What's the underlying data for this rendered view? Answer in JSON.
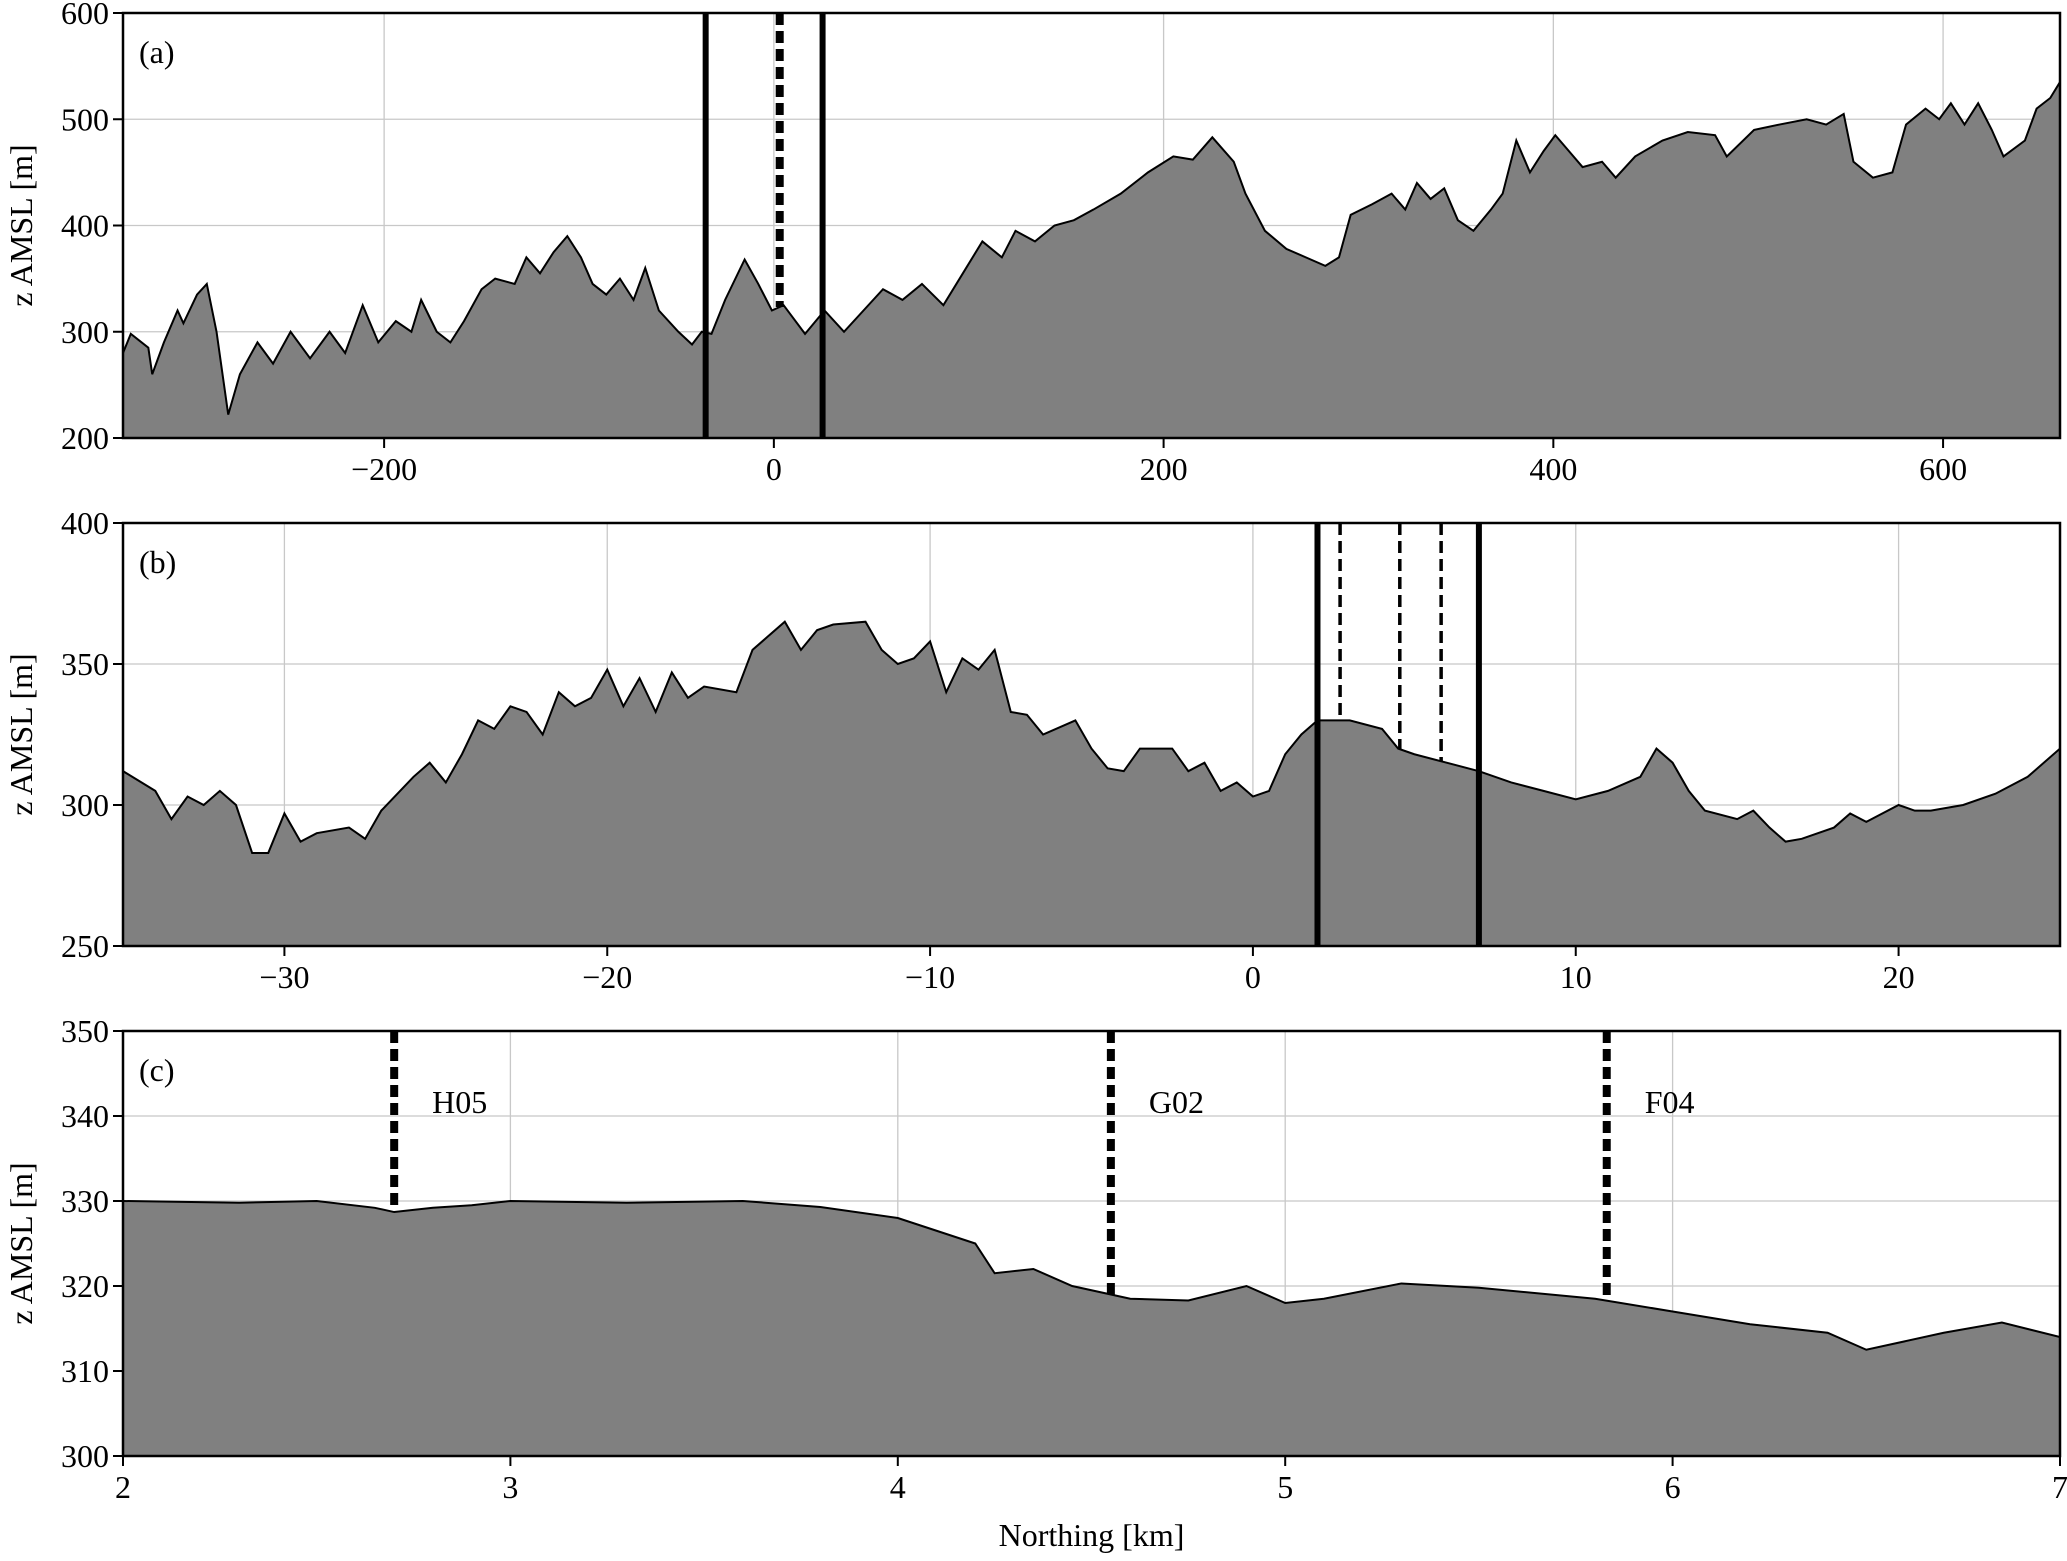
{
  "chart_data": [
    {
      "type": "area",
      "label": "(a)",
      "ylabel": "z AMSL [m]",
      "color": "#808080",
      "grid": true,
      "xlim": [
        -334,
        660
      ],
      "ylim": [
        200,
        600
      ],
      "xticks": [
        {
          "value": -200,
          "label": "−200"
        },
        0,
        200,
        400,
        600
      ],
      "yticks": [
        200,
        300,
        400,
        500,
        600
      ],
      "x": [
        -334,
        -330,
        -321,
        -319,
        -313,
        -306,
        -303,
        -296,
        -291,
        -286,
        -280,
        -274,
        -265,
        -257,
        -248,
        -238,
        -228,
        -220,
        -211,
        -203,
        -194,
        -186,
        -181,
        -173,
        -166,
        -159,
        -150,
        -143,
        -133,
        -127,
        -120,
        -113,
        -106,
        -99,
        -93,
        -86,
        -79,
        -72,
        -66,
        -59,
        -49,
        -42,
        -37,
        -32,
        -25,
        -15,
        -8,
        -1,
        5,
        16,
        26,
        36,
        46,
        56,
        66,
        76,
        87,
        97,
        107,
        117,
        124,
        134,
        144,
        154,
        164,
        178,
        192,
        205,
        215,
        225,
        236,
        242,
        252,
        263,
        273,
        283,
        290,
        296,
        307,
        317,
        324,
        330,
        337,
        344,
        351,
        359,
        368,
        374,
        381,
        388,
        395,
        401,
        408,
        415,
        425,
        432,
        442,
        456,
        469,
        483,
        489,
        503,
        516,
        530,
        540,
        549,
        554,
        564,
        574,
        581,
        591,
        598,
        604,
        611,
        618,
        625,
        631,
        642,
        648,
        655,
        660
      ],
      "values": [
        280,
        298,
        285,
        260,
        290,
        320,
        308,
        335,
        345,
        300,
        222,
        260,
        290,
        270,
        300,
        275,
        300,
        280,
        325,
        290,
        310,
        300,
        330,
        300,
        290,
        310,
        340,
        350,
        345,
        370,
        355,
        375,
        390,
        370,
        345,
        335,
        350,
        330,
        360,
        320,
        300,
        288,
        300,
        298,
        330,
        368,
        345,
        320,
        325,
        298,
        320,
        300,
        320,
        340,
        330,
        345,
        325,
        355,
        385,
        370,
        395,
        385,
        400,
        405,
        415,
        430,
        450,
        465,
        462,
        483,
        460,
        430,
        395,
        378,
        370,
        362,
        370,
        410,
        420,
        430,
        415,
        440,
        425,
        435,
        405,
        395,
        415,
        430,
        480,
        450,
        470,
        485,
        470,
        455,
        460,
        445,
        465,
        480,
        488,
        485,
        465,
        490,
        495,
        500,
        495,
        505,
        460,
        445,
        450,
        495,
        510,
        500,
        515,
        495,
        515,
        490,
        465,
        480,
        510,
        520,
        535
      ],
      "vlines": [
        {
          "x": -35,
          "style": "solid"
        },
        {
          "x": 3,
          "style": "dashed"
        },
        {
          "x": 25,
          "style": "solid"
        }
      ]
    },
    {
      "type": "area",
      "label": "(b)",
      "ylabel": "z AMSL [m]",
      "color": "#808080",
      "grid": true,
      "xlim": [
        -35,
        25
      ],
      "ylim": [
        250,
        400
      ],
      "xticks": [
        {
          "value": -30,
          "label": "−30"
        },
        {
          "value": -20,
          "label": "−20"
        },
        {
          "value": -10,
          "label": "−10"
        },
        0,
        10,
        20
      ],
      "yticks": [
        250,
        300,
        350,
        400
      ],
      "x": [
        -35,
        -34,
        -33.5,
        -33,
        -32.5,
        -32,
        -31.5,
        -31,
        -30.5,
        -30,
        -29.5,
        -29,
        -28,
        -27.5,
        -27,
        -26,
        -25.5,
        -25,
        -24.5,
        -24,
        -23.5,
        -23,
        -22.5,
        -22,
        -21.5,
        -21,
        -20.5,
        -20,
        -19.5,
        -19,
        -18.5,
        -18,
        -17.5,
        -17,
        -16,
        -15.5,
        -15,
        -14.5,
        -14,
        -13.5,
        -13,
        -12,
        -11.5,
        -11,
        -10.5,
        -10,
        -9.5,
        -9,
        -8.5,
        -8,
        -7.5,
        -7,
        -6.5,
        -5.5,
        -5,
        -4.5,
        -4,
        -3.5,
        -2.5,
        -2,
        -1.5,
        -1,
        -0.5,
        0,
        0.5,
        1,
        1.5,
        2,
        3,
        4,
        4.5,
        5,
        6,
        7,
        8,
        9,
        10,
        11,
        12,
        12.5,
        13,
        13.5,
        14,
        15,
        15.5,
        16,
        16.5,
        17,
        18,
        18.5,
        19,
        20,
        20.5,
        21,
        22,
        23,
        24,
        25
      ],
      "values": [
        312,
        305,
        295,
        303,
        300,
        305,
        300,
        283,
        283,
        297,
        287,
        290,
        292,
        288,
        298,
        310,
        315,
        308,
        318,
        330,
        327,
        335,
        333,
        325,
        340,
        335,
        338,
        348,
        335,
        345,
        333,
        347,
        338,
        342,
        340,
        355,
        360,
        365,
        355,
        362,
        364,
        365,
        355,
        350,
        352,
        358,
        340,
        352,
        348,
        355,
        333,
        332,
        325,
        330,
        320,
        313,
        312,
        320,
        320,
        312,
        315,
        305,
        308,
        303,
        305,
        318,
        325,
        330,
        330,
        327,
        320,
        318,
        315,
        312,
        308,
        305,
        302,
        305,
        310,
        320,
        315,
        305,
        298,
        295,
        298,
        292,
        287,
        288,
        292,
        297,
        294,
        300,
        298,
        298,
        300,
        304,
        310,
        320
      ],
      "vlines": [
        {
          "x": 2,
          "style": "solid"
        },
        {
          "x": 2.7,
          "style": "dashed"
        },
        {
          "x": 4.55,
          "style": "dashed"
        },
        {
          "x": 5.83,
          "style": "dashed"
        },
        {
          "x": 7,
          "style": "solid"
        }
      ]
    },
    {
      "type": "area",
      "label": "(c)",
      "ylabel": "z AMSL [m]",
      "xlabel": "Northing [km]",
      "color": "#808080",
      "grid": true,
      "xlim": [
        2,
        7
      ],
      "ylim": [
        300,
        350
      ],
      "xticks": [
        2,
        3,
        4,
        5,
        6,
        7
      ],
      "yticks": [
        300,
        310,
        320,
        330,
        340,
        350
      ],
      "x": [
        2,
        2.3,
        2.5,
        2.65,
        2.7,
        2.8,
        2.9,
        3,
        3.3,
        3.6,
        3.8,
        4,
        4.1,
        4.2,
        4.25,
        4.35,
        4.45,
        4.6,
        4.75,
        4.9,
        5,
        5.1,
        5.3,
        5.5,
        5.8,
        6,
        6.2,
        6.4,
        6.5,
        6.7,
        6.85,
        7
      ],
      "values": [
        330,
        329.8,
        330,
        329.2,
        328.7,
        329.2,
        329.5,
        330,
        329.8,
        330,
        329.3,
        328,
        326.5,
        325,
        321.5,
        322,
        320,
        318.5,
        318.3,
        320,
        318,
        318.5,
        320.3,
        319.8,
        318.5,
        317,
        315.5,
        314.5,
        312.5,
        314.5,
        315.7,
        314
      ],
      "vlines": [
        {
          "x": 2.7,
          "style": "dashed",
          "label": "H05"
        },
        {
          "x": 4.55,
          "style": "dashed",
          "label": "G02"
        },
        {
          "x": 5.83,
          "style": "dashed",
          "label": "F04"
        }
      ]
    }
  ]
}
